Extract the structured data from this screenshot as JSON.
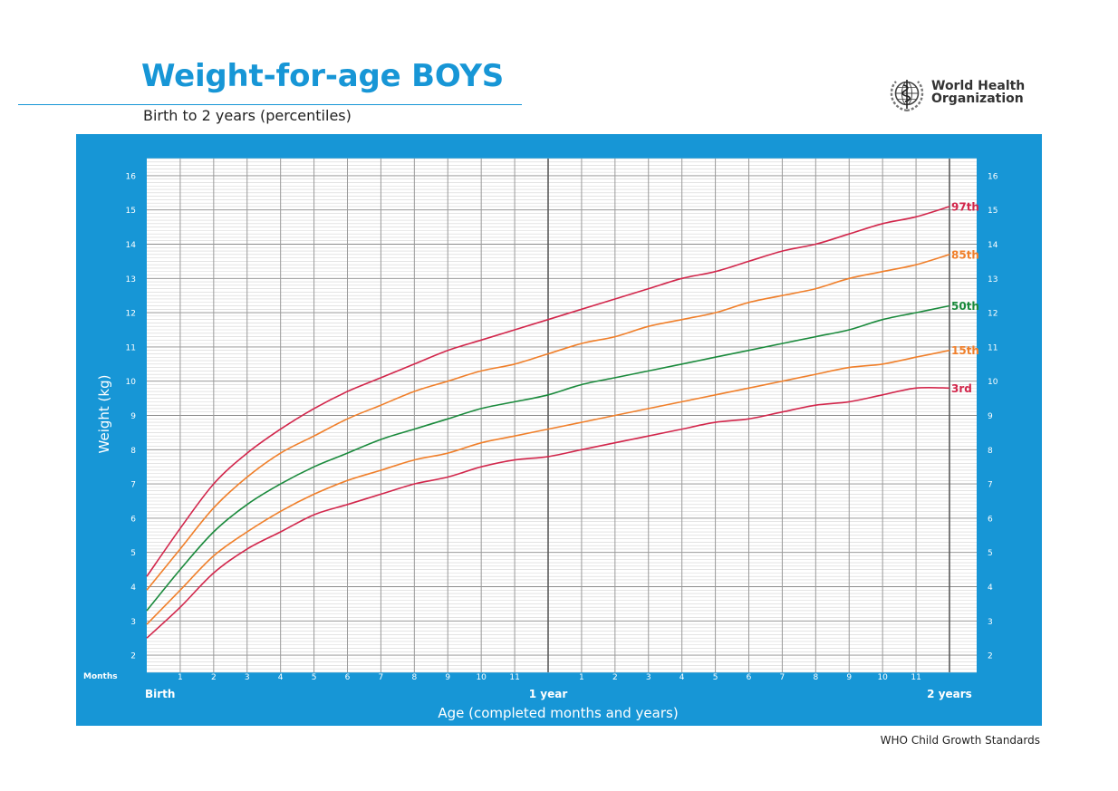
{
  "header": {
    "title": "Weight-for-age BOYS",
    "subtitle": "Birth to 2 years (percentiles)",
    "org_name_line1": "World Health",
    "org_name_line2": "Organization",
    "emblem_icon": "who-emblem-icon"
  },
  "footer": {
    "note": "WHO Child Growth Standards"
  },
  "colors": {
    "panel_blue": "#1796d6",
    "p97": "#d2264b",
    "p85": "#f07f2a",
    "p50": "#1a8a3c",
    "p15": "#f07f2a",
    "p3": "#d2264b"
  },
  "chart_data": {
    "type": "line",
    "ylabel": "Weight (kg)",
    "xlabel": "Age (completed months and years)",
    "months_label": "Months",
    "xlim": [
      0,
      24
    ],
    "ylim": [
      1.5,
      16.5
    ],
    "y_ticks": [
      2,
      3,
      4,
      5,
      6,
      7,
      8,
      9,
      10,
      11,
      12,
      13,
      14,
      15,
      16
    ],
    "x_tick_labels": [
      "1",
      "2",
      "3",
      "4",
      "5",
      "6",
      "7",
      "8",
      "9",
      "10",
      "11",
      "",
      "1",
      "2",
      "3",
      "4",
      "5",
      "6",
      "7",
      "8",
      "9",
      "10",
      "11"
    ],
    "x_milestones": [
      {
        "x": 0,
        "label": "Birth"
      },
      {
        "x": 12,
        "label": "1 year"
      },
      {
        "x": 24,
        "label": "2 years"
      }
    ],
    "grid": true,
    "x": [
      0,
      1,
      2,
      3,
      4,
      5,
      6,
      7,
      8,
      9,
      10,
      11,
      12,
      13,
      14,
      15,
      16,
      17,
      18,
      19,
      20,
      21,
      22,
      23,
      24
    ],
    "series": [
      {
        "name": "97th",
        "color_key": "p97",
        "values": [
          4.3,
          5.7,
          7.0,
          7.9,
          8.6,
          9.2,
          9.7,
          10.1,
          10.5,
          10.9,
          11.2,
          11.5,
          11.8,
          12.1,
          12.4,
          12.7,
          13.0,
          13.2,
          13.5,
          13.8,
          14.0,
          14.3,
          14.6,
          14.8,
          15.1
        ]
      },
      {
        "name": "85th",
        "color_key": "p85",
        "values": [
          3.9,
          5.1,
          6.3,
          7.2,
          7.9,
          8.4,
          8.9,
          9.3,
          9.7,
          10.0,
          10.3,
          10.5,
          10.8,
          11.1,
          11.3,
          11.6,
          11.8,
          12.0,
          12.3,
          12.5,
          12.7,
          13.0,
          13.2,
          13.4,
          13.7
        ]
      },
      {
        "name": "50th",
        "color_key": "p50",
        "values": [
          3.3,
          4.5,
          5.6,
          6.4,
          7.0,
          7.5,
          7.9,
          8.3,
          8.6,
          8.9,
          9.2,
          9.4,
          9.6,
          9.9,
          10.1,
          10.3,
          10.5,
          10.7,
          10.9,
          11.1,
          11.3,
          11.5,
          11.8,
          12.0,
          12.2
        ]
      },
      {
        "name": "15th",
        "color_key": "p15",
        "values": [
          2.9,
          3.9,
          4.9,
          5.6,
          6.2,
          6.7,
          7.1,
          7.4,
          7.7,
          7.9,
          8.2,
          8.4,
          8.6,
          8.8,
          9.0,
          9.2,
          9.4,
          9.6,
          9.8,
          10.0,
          10.2,
          10.4,
          10.5,
          10.7,
          10.9
        ]
      },
      {
        "name": "3rd",
        "color_key": "p3",
        "values": [
          2.5,
          3.4,
          4.4,
          5.1,
          5.6,
          6.1,
          6.4,
          6.7,
          7.0,
          7.2,
          7.5,
          7.7,
          7.8,
          8.0,
          8.2,
          8.4,
          8.6,
          8.8,
          8.9,
          9.1,
          9.3,
          9.4,
          9.6,
          9.8,
          9.8
        ]
      }
    ]
  }
}
